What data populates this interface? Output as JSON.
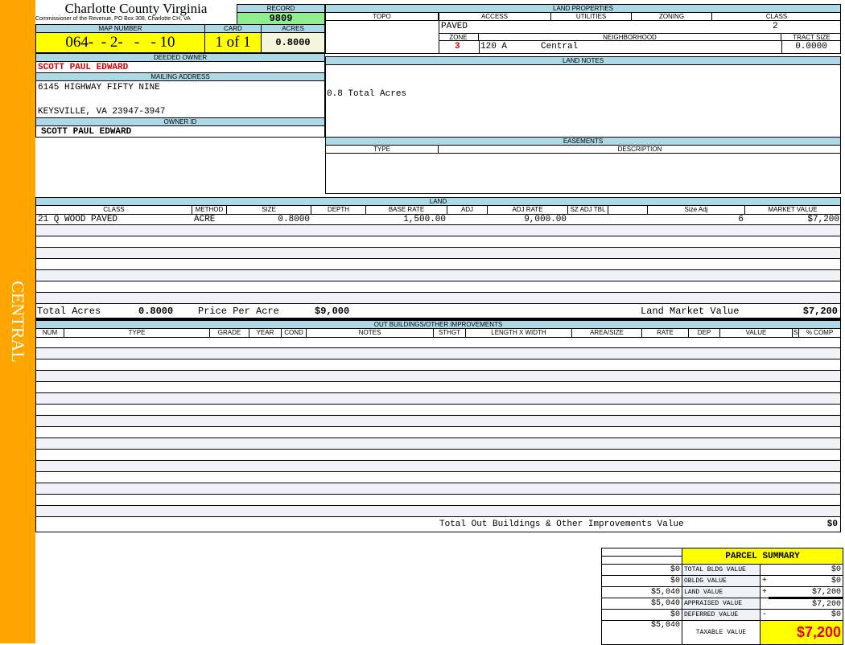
{
  "sidebar": {
    "label": "CENTRAL",
    "color": "#ffa500"
  },
  "header": {
    "county": "Charlotte County Virginia",
    "office": "Commissioner of the Revenue, PO Box 308, Charlotte CH, VA"
  },
  "record": {
    "label": "RECORD",
    "value": "9809"
  },
  "map": {
    "label": "MAP NUMBER",
    "value": "064-  - 2-   -   - 10",
    "card_label": "CARD",
    "card": "1 of 1",
    "acres_label": "ACRES",
    "acres": "0.8000"
  },
  "owner": {
    "deeded_label": "DEEDED OWNER",
    "deeded": "SCOTT PAUL EDWARD",
    "mailing_label": "MAILING ADDRESS",
    "address1": "6145 HIGHWAY FIFTY NINE",
    "address2": "KEYSVILLE, VA 23947-3947",
    "id_label": "OWNER ID",
    "id": "SCOTT PAUL EDWARD"
  },
  "land_properties": {
    "title": "LAND PROPERTIES",
    "topo": "TOPO",
    "access": "ACCESS",
    "utilities": "UTILITIES",
    "zoning": "ZONING",
    "class": "CLASS",
    "access_value": "PAVED",
    "class_value": "2",
    "zone_label": "ZONE",
    "neighborhood_label": "NEIGHBORHOOD",
    "tract_label": "TRACT SIZE",
    "zone": "3",
    "neighborhood_code": "120 A",
    "neighborhood": "Central",
    "tract": "0.0000"
  },
  "land_notes": {
    "title": "LAND NOTES",
    "text": "0.8 Total Acres"
  },
  "easements": {
    "title": "EASEMENTS",
    "type": "TYPE",
    "description": "DESCRIPTION"
  },
  "land": {
    "title": "LAND",
    "columns": [
      "CLASS",
      "METHOD",
      "SIZE",
      "DEPTH",
      "BASE RATE",
      "ADJ",
      "ADJ RATE",
      "SZ ADJ TBL",
      "",
      "Size Adj",
      "MARKET VALUE"
    ],
    "rows": [
      [
        "21 Q WOOD PAVED",
        "ACRE",
        "0.8000",
        "",
        "1,500.00",
        "",
        "9,000.00",
        "",
        "",
        "6",
        "$7,200"
      ]
    ],
    "total_acres_label": "Total Acres",
    "total_acres": "0.8000",
    "ppa_label": "Price Per Acre",
    "ppa": "$9,000",
    "lmv_label": "Land Market Value",
    "lmv": "$7,200"
  },
  "outbuildings": {
    "title": "OUT BUILDINGS/OTHER IMPROVEMENTS",
    "columns": [
      "NUM",
      "TYPE",
      "GRADE",
      "YEAR",
      "COND",
      "NOTES",
      "STHGT",
      "LENGTH X WIDTH",
      "AREA/SIZE",
      "RATE",
      "DEP",
      "VALUE",
      "S",
      "% COMP"
    ],
    "total_label": "Total Out Buildings & Other Improvements Value",
    "total": "$0"
  },
  "summary": {
    "title": "PARCEL SUMMARY",
    "rows": [
      {
        "left": "$0",
        "label": "TOTAL BLDG VALUE",
        "op": "",
        "value": "$0"
      },
      {
        "left": "$0",
        "label": "OBLDG VALUE",
        "op": "+",
        "value": "$0"
      },
      {
        "left": "$5,040",
        "label": "LAND VALUE",
        "op": "+",
        "value": "$7,200"
      },
      {
        "left": "$5,040",
        "label": "APPRAISED VALUE",
        "op": "",
        "value": "$7,200"
      },
      {
        "left": "$0",
        "label": "DEFERRED VALUE",
        "op": "-",
        "value": "$0"
      }
    ],
    "taxable_left": "$5,040",
    "taxable_label": "TAXABLE VALUE",
    "taxable": "$7,200"
  }
}
